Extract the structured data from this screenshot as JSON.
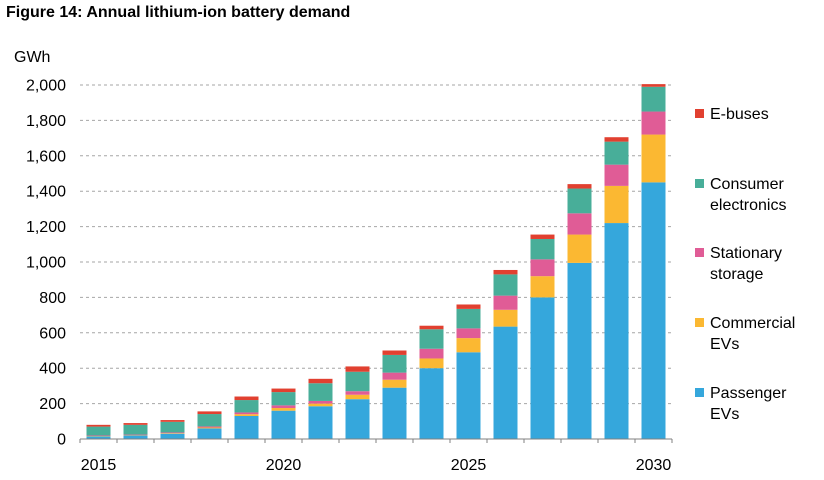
{
  "figure_title": "Figure 14: Annual lithium-ion battery demand",
  "colors": {
    "passenger_evs": "#35a7dc",
    "commercial_evs": "#fbb832",
    "stationary_storage": "#e05c96",
    "consumer_electronics": "#48ae99",
    "e_buses": "#e14030"
  },
  "chart_data": {
    "type": "bar",
    "stacked": true,
    "title": "Figure 14: Annual lithium-ion battery demand",
    "ylabel": "GWh",
    "xlabel": "",
    "ylim": [
      0,
      2000
    ],
    "yticks": [
      "0",
      "200",
      "400",
      "600",
      "800",
      "1,000",
      "1,200",
      "1,400",
      "1,600",
      "1,800",
      "2,000"
    ],
    "categories": [
      "2015",
      "2016",
      "2017",
      "2018",
      "2019",
      "2020",
      "2021",
      "2022",
      "2023",
      "2024",
      "2025",
      "2026",
      "2027",
      "2028",
      "2029",
      "2030"
    ],
    "xtick_labels": [
      "2015",
      "2020",
      "2025",
      "2030"
    ],
    "grid": true,
    "legend_position": "right",
    "series": [
      {
        "name": "Passenger EVs",
        "values": [
          15,
          20,
          30,
          60,
          130,
          160,
          185,
          225,
          290,
          400,
          490,
          635,
          800,
          995,
          1220,
          1450
        ]
      },
      {
        "name": "Commercial EVs",
        "values": [
          2,
          2,
          3,
          5,
          10,
          15,
          15,
          25,
          45,
          55,
          80,
          95,
          120,
          160,
          210,
          270
        ]
      },
      {
        "name": "Stationary storage",
        "values": [
          3,
          3,
          4,
          6,
          10,
          15,
          15,
          20,
          40,
          55,
          55,
          80,
          95,
          120,
          120,
          130
        ]
      },
      {
        "name": "Consumer electronics",
        "values": [
          50,
          55,
          60,
          70,
          70,
          75,
          100,
          110,
          100,
          110,
          110,
          120,
          115,
          140,
          130,
          140
        ]
      },
      {
        "name": "E-buses",
        "values": [
          10,
          10,
          10,
          15,
          20,
          20,
          25,
          30,
          25,
          20,
          25,
          25,
          25,
          25,
          25,
          15
        ]
      }
    ]
  }
}
